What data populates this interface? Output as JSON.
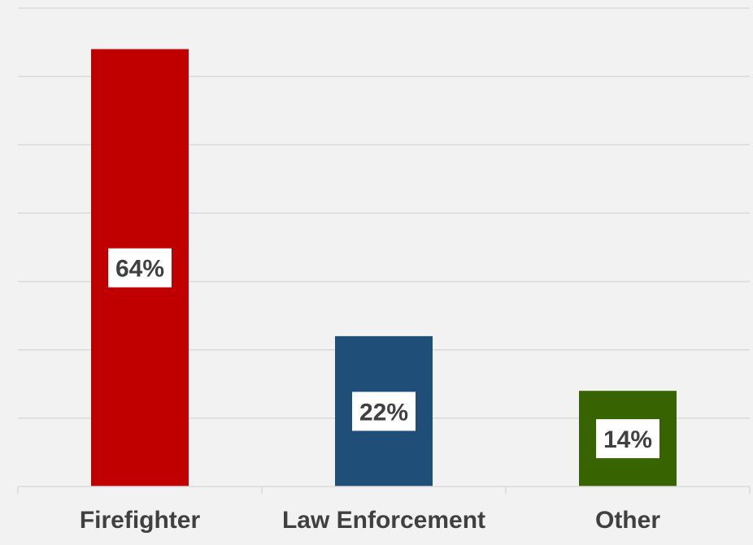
{
  "chart_data": {
    "type": "bar",
    "categories": [
      "Firefighter",
      "Law Enforcement",
      "Other"
    ],
    "values": [
      64,
      22,
      14
    ],
    "data_labels": [
      "64%",
      "22%",
      "14%"
    ],
    "colors": [
      "#c00000",
      "#1f4e79",
      "#376400"
    ],
    "ylim": [
      0,
      70
    ],
    "y_gridline_step": 10,
    "grid": true,
    "y_axis_labels_visible": false,
    "legend": "none",
    "title": "",
    "xlabel": "",
    "ylabel": ""
  }
}
